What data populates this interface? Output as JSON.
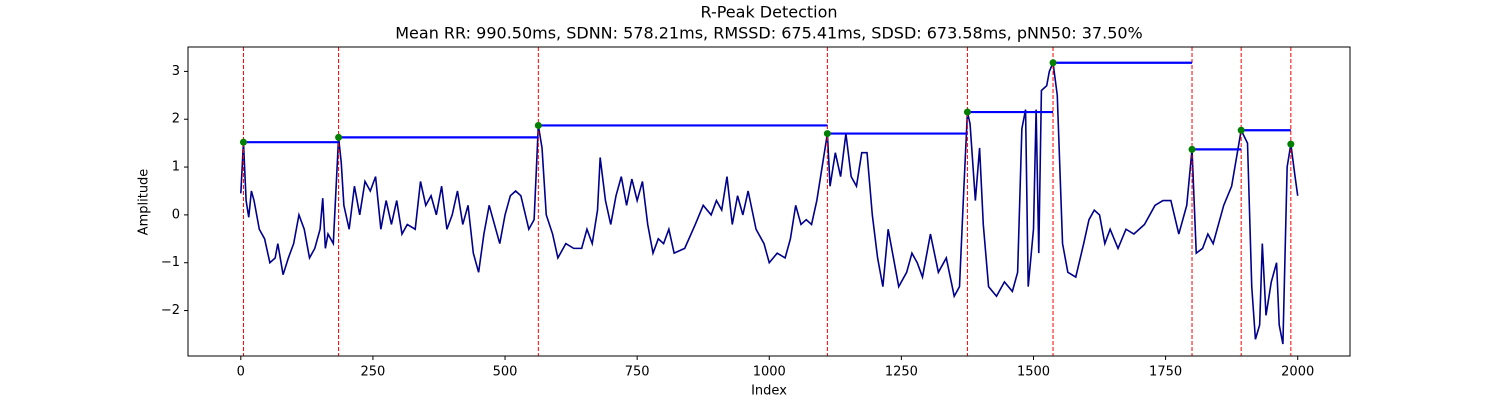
{
  "chart_data": {
    "type": "line",
    "title": "R-Peak Detection",
    "subtitle": "Mean RR: 990.50ms, SDNN: 578.21ms, RMSSD: 675.41ms, SDSD: 673.58ms, pNN50: 37.50%",
    "x_label": "Index",
    "y_label": "Amplitude",
    "xlim": [
      -99.95,
      2098.95
    ],
    "ylim": [
      -2.95,
      3.51
    ],
    "xticks": [
      0,
      250,
      500,
      750,
      1000,
      1250,
      1500,
      1750,
      2000
    ],
    "yticks": [
      -2,
      -1,
      0,
      1,
      2,
      3
    ],
    "grid": false,
    "vline_color": "#ff0000",
    "hline_color": "#0000ff",
    "series": [
      {
        "type": "line",
        "color": "#00008b",
        "x": [
          0,
          5,
          10,
          15,
          20,
          25,
          35,
          45,
          55,
          65,
          70,
          80,
          90,
          100,
          110,
          120,
          130,
          140,
          150,
          155,
          160,
          165,
          175,
          185,
          190,
          195,
          205,
          215,
          225,
          235,
          245,
          255,
          265,
          275,
          285,
          295,
          305,
          315,
          330,
          340,
          350,
          360,
          370,
          380,
          390,
          400,
          410,
          420,
          430,
          440,
          450,
          460,
          470,
          480,
          490,
          500,
          510,
          520,
          530,
          545,
          555,
          563,
          570,
          578,
          590,
          600,
          615,
          630,
          645,
          655,
          665,
          675,
          680,
          690,
          700,
          710,
          720,
          730,
          740,
          750,
          760,
          770,
          780,
          790,
          800,
          810,
          820,
          840,
          860,
          875,
          890,
          900,
          910,
          920,
          930,
          940,
          950,
          960,
          975,
          990,
          1000,
          1015,
          1030,
          1040,
          1050,
          1060,
          1070,
          1080,
          1090,
          1100,
          1110,
          1115,
          1125,
          1135,
          1145,
          1155,
          1165,
          1175,
          1185,
          1195,
          1205,
          1215,
          1225,
          1235,
          1245,
          1260,
          1270,
          1280,
          1290,
          1305,
          1320,
          1335,
          1350,
          1360,
          1368,
          1375,
          1380,
          1390,
          1398,
          1405,
          1415,
          1430,
          1445,
          1460,
          1470,
          1478,
          1485,
          1490,
          1500,
          1505,
          1510,
          1515,
          1525,
          1530,
          1537,
          1545,
          1555,
          1565,
          1580,
          1595,
          1605,
          1615,
          1625,
          1635,
          1645,
          1660,
          1675,
          1690,
          1710,
          1730,
          1745,
          1760,
          1775,
          1790,
          1800,
          1808,
          1820,
          1830,
          1840,
          1850,
          1860,
          1875,
          1893,
          1905,
          1913,
          1920,
          1928,
          1933,
          1940,
          1950,
          1960,
          1965,
          1972,
          1980,
          1987,
          1995,
          2000
        ],
        "values": [
          0.45,
          1.52,
          0.3,
          -0.05,
          0.5,
          0.3,
          -0.3,
          -0.5,
          -1.0,
          -0.9,
          -0.6,
          -1.25,
          -0.9,
          -0.6,
          0.0,
          -0.3,
          -0.9,
          -0.7,
          -0.3,
          0.35,
          -0.7,
          -0.4,
          -0.6,
          1.62,
          1.1,
          0.2,
          -0.3,
          0.6,
          0.0,
          0.7,
          0.5,
          0.8,
          -0.3,
          0.3,
          -0.2,
          0.3,
          -0.4,
          -0.2,
          -0.3,
          0.7,
          0.2,
          0.4,
          0.0,
          0.6,
          -0.3,
          0.0,
          0.5,
          -0.2,
          0.2,
          -0.8,
          -1.2,
          -0.4,
          0.2,
          -0.2,
          -0.6,
          0.0,
          0.4,
          0.5,
          0.4,
          -0.3,
          -0.1,
          1.87,
          1.4,
          0.0,
          -0.4,
          -0.9,
          -0.6,
          -0.7,
          -0.7,
          -0.3,
          -0.6,
          0.1,
          1.2,
          0.3,
          -0.2,
          0.4,
          0.8,
          0.2,
          0.75,
          0.3,
          0.7,
          -0.2,
          -0.8,
          -0.5,
          -0.6,
          -0.3,
          -0.8,
          -0.7,
          -0.2,
          0.2,
          0.0,
          0.3,
          0.1,
          0.8,
          -0.2,
          0.4,
          0.0,
          0.5,
          -0.3,
          -0.6,
          -1.0,
          -0.8,
          -0.9,
          -0.5,
          0.2,
          -0.2,
          -0.1,
          -0.2,
          0.3,
          1.0,
          1.7,
          0.6,
          1.3,
          0.8,
          1.7,
          0.8,
          0.6,
          1.3,
          1.3,
          0.0,
          -0.9,
          -1.5,
          -0.3,
          -0.9,
          -1.5,
          -1.2,
          -0.8,
          -1.0,
          -1.3,
          -0.4,
          -1.2,
          -0.9,
          -1.7,
          -1.5,
          0.5,
          2.15,
          1.9,
          0.3,
          1.4,
          -0.2,
          -1.5,
          -1.7,
          -1.4,
          -1.6,
          -1.2,
          1.8,
          2.2,
          -1.5,
          -0.3,
          2.2,
          -0.8,
          2.6,
          2.7,
          3.0,
          3.18,
          2.5,
          -0.6,
          -1.2,
          -1.3,
          -0.6,
          -0.1,
          0.1,
          0.0,
          -0.6,
          -0.3,
          -0.7,
          -0.3,
          -0.4,
          -0.2,
          0.2,
          0.3,
          0.3,
          -0.4,
          0.2,
          1.37,
          -0.8,
          -0.7,
          -0.4,
          -0.6,
          -0.2,
          0.2,
          0.6,
          1.77,
          1.5,
          -1.5,
          -2.6,
          -2.3,
          -0.6,
          -2.1,
          -1.4,
          -1.0,
          -2.3,
          -2.7,
          1.0,
          1.48,
          0.8,
          0.4
        ]
      },
      {
        "type": "scatter",
        "color": "#008000",
        "x": [
          5,
          185,
          563,
          1110,
          1375,
          1537,
          1800,
          1893,
          1987
        ],
        "values": [
          1.52,
          1.62,
          1.87,
          1.7,
          2.15,
          3.18,
          1.37,
          1.77,
          1.48
        ]
      }
    ]
  }
}
